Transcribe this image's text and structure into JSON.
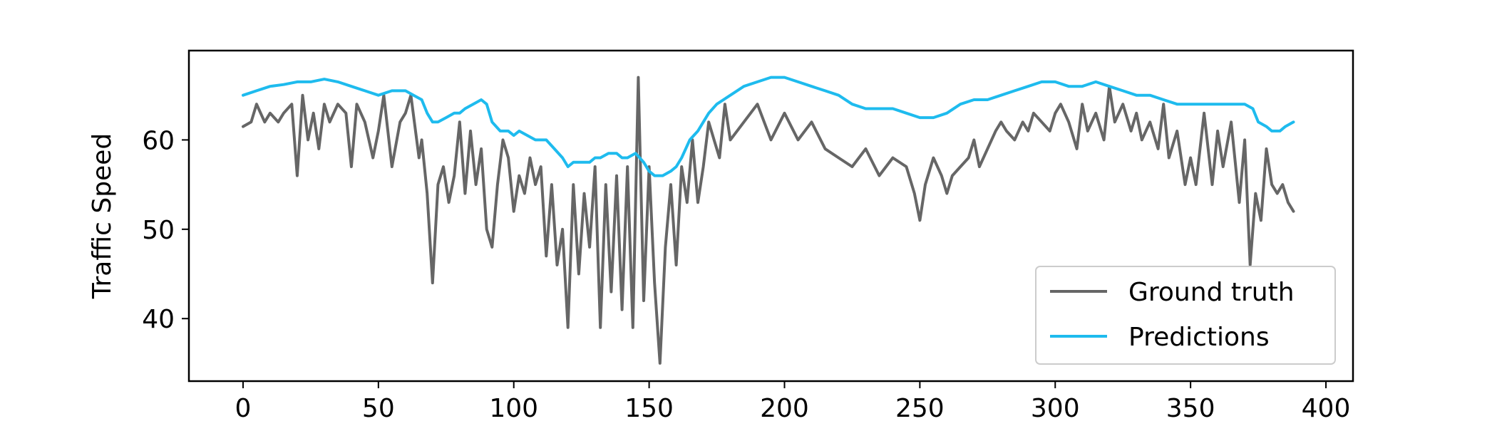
{
  "chart_data": {
    "type": "line",
    "title": "",
    "xlabel": "",
    "ylabel": "Traffic Speed",
    "xlim": [
      -20,
      410
    ],
    "ylim": [
      33,
      70
    ],
    "xticks": [
      0,
      50,
      100,
      150,
      200,
      250,
      300,
      350,
      400
    ],
    "yticks": [
      40,
      50,
      60
    ],
    "grid": false,
    "legend_position": "lower-right",
    "series": [
      {
        "name": "Ground truth",
        "color": "#666666",
        "x": [
          0,
          3,
          5,
          8,
          10,
          13,
          15,
          18,
          20,
          22,
          24,
          26,
          28,
          30,
          32,
          35,
          38,
          40,
          42,
          45,
          48,
          50,
          52,
          55,
          58,
          60,
          62,
          65,
          66,
          68,
          70,
          72,
          74,
          76,
          78,
          80,
          82,
          84,
          86,
          88,
          90,
          92,
          94,
          96,
          98,
          100,
          102,
          104,
          106,
          108,
          110,
          112,
          114,
          116,
          118,
          120,
          122,
          124,
          126,
          128,
          130,
          132,
          134,
          136,
          138,
          140,
          142,
          144,
          146,
          148,
          150,
          152,
          154,
          156,
          158,
          160,
          162,
          164,
          166,
          168,
          170,
          172,
          174,
          176,
          178,
          180,
          185,
          190,
          195,
          200,
          205,
          210,
          215,
          220,
          225,
          230,
          235,
          240,
          245,
          248,
          250,
          252,
          255,
          258,
          260,
          262,
          265,
          268,
          270,
          272,
          275,
          278,
          280,
          282,
          285,
          288,
          290,
          292,
          295,
          298,
          300,
          302,
          305,
          308,
          310,
          312,
          315,
          318,
          320,
          322,
          325,
          328,
          330,
          332,
          335,
          338,
          340,
          342,
          345,
          348,
          350,
          352,
          355,
          358,
          360,
          362,
          365,
          368,
          370,
          372,
          374,
          376,
          378,
          380,
          382,
          384,
          386,
          388
        ],
        "y": [
          61.5,
          62,
          64,
          62,
          63,
          62,
          63,
          64,
          56,
          65,
          60,
          63,
          59,
          64,
          62,
          64,
          63,
          57,
          64,
          62,
          58,
          61,
          65,
          57,
          62,
          63,
          65,
          58,
          60,
          54,
          44,
          55,
          57,
          53,
          56,
          62,
          54,
          61,
          55,
          59,
          50,
          48,
          55,
          60,
          58,
          52,
          56,
          54,
          58,
          55,
          57,
          47,
          55,
          46,
          50,
          39,
          55,
          45,
          54,
          48,
          57,
          39,
          55,
          43,
          56,
          41,
          57,
          39,
          67,
          42,
          57,
          44,
          35,
          48,
          55,
          46,
          57,
          53,
          60,
          53,
          57,
          62,
          60,
          58,
          64,
          60,
          62,
          64,
          60,
          63,
          60,
          62,
          59,
          58,
          57,
          59,
          56,
          58,
          57,
          54,
          51,
          55,
          58,
          56,
          54,
          56,
          57,
          58,
          60,
          57,
          59,
          61,
          62,
          61,
          60,
          62,
          61,
          63,
          62,
          61,
          63,
          64,
          62,
          59,
          64,
          61,
          63,
          60,
          66,
          62,
          64,
          61,
          63,
          60,
          62,
          59,
          64,
          58,
          61,
          55,
          58,
          55,
          63,
          55,
          61,
          57,
          62,
          53,
          60,
          46,
          54,
          51,
          59,
          55,
          54,
          55,
          53,
          52
        ]
      },
      {
        "name": "Predictions",
        "color": "#1ebbee",
        "x": [
          0,
          5,
          10,
          15,
          20,
          25,
          30,
          35,
          40,
          45,
          50,
          55,
          60,
          63,
          66,
          68,
          70,
          72,
          75,
          78,
          80,
          82,
          85,
          88,
          90,
          92,
          95,
          98,
          100,
          102,
          105,
          108,
          110,
          112,
          115,
          118,
          120,
          122,
          125,
          128,
          130,
          132,
          135,
          138,
          140,
          142,
          145,
          148,
          150,
          152,
          155,
          158,
          160,
          162,
          165,
          168,
          170,
          172,
          175,
          180,
          185,
          190,
          195,
          200,
          205,
          210,
          215,
          220,
          225,
          230,
          235,
          240,
          245,
          250,
          255,
          260,
          265,
          270,
          275,
          280,
          285,
          290,
          295,
          300,
          305,
          310,
          315,
          320,
          325,
          330,
          335,
          340,
          345,
          350,
          355,
          360,
          365,
          370,
          373,
          375,
          378,
          380,
          383,
          385,
          388
        ],
        "y": [
          65,
          65.5,
          66,
          66.2,
          66.5,
          66.5,
          66.8,
          66.5,
          66,
          65.5,
          65,
          65.5,
          65.5,
          65,
          64.5,
          63,
          62,
          62,
          62.5,
          63,
          63,
          63.5,
          64,
          64.5,
          64,
          62,
          61,
          61,
          60.5,
          61,
          60.5,
          60,
          60,
          60,
          59,
          58,
          57,
          57.5,
          57.5,
          57.5,
          58,
          58,
          58.5,
          58.5,
          58,
          58,
          58.5,
          57.5,
          56.5,
          56,
          56,
          56.5,
          57,
          58,
          60,
          61,
          62,
          63,
          64,
          65,
          66,
          66.5,
          67,
          67,
          66.5,
          66,
          65.5,
          65,
          64,
          63.5,
          63.5,
          63.5,
          63,
          62.5,
          62.5,
          63,
          64,
          64.5,
          64.5,
          65,
          65.5,
          66,
          66.5,
          66.5,
          66,
          66,
          66.5,
          66,
          65.5,
          65,
          65,
          64.5,
          64,
          64,
          64,
          64,
          64,
          64,
          63.5,
          62,
          61.5,
          61,
          61,
          61.5,
          62
        ]
      }
    ]
  }
}
